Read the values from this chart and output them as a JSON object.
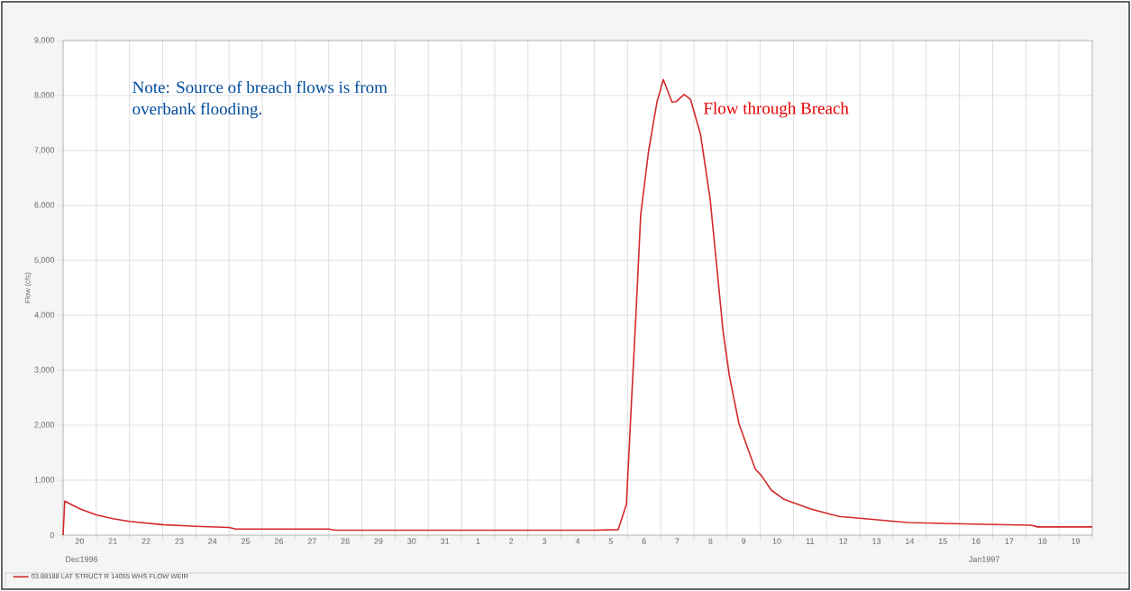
{
  "chart_data": {
    "type": "line",
    "ylabel": "Flow (cfs)",
    "xlim": [
      "1996-12-20T00:00",
      "1997-01-20T00:00"
    ],
    "ylim": [
      0,
      9000
    ],
    "yticks": [
      0,
      {
        "value": 1000,
        "label": "1,000"
      },
      {
        "value": 2000,
        "label": "2,000"
      },
      {
        "value": 3000,
        "label": "3,000"
      },
      {
        "value": 4000,
        "label": "4,000"
      },
      {
        "value": 5000,
        "label": "5,000"
      },
      {
        "value": 6000,
        "label": "6,000"
      },
      {
        "value": 7000,
        "label": "7,000"
      },
      {
        "value": 8000,
        "label": "8,000"
      },
      {
        "value": 9000,
        "label": "9,000"
      }
    ],
    "xticks": [
      {
        "value": "1996-12-20T00:00",
        "label": null
      },
      {
        "value": "1996-12-21T00:00",
        "label": null
      },
      {
        "value": "1996-12-22T00:00",
        "label": null
      },
      {
        "value": "1996-12-23T00:00",
        "label": null
      },
      {
        "value": "1996-12-24T00:00",
        "label": null
      },
      {
        "value": "1996-12-25T00:00",
        "label": null
      },
      {
        "value": "1996-12-26T00:00",
        "label": null
      },
      {
        "value": "1996-12-27T00:00",
        "label": null
      },
      {
        "value": "1996-12-28T00:00",
        "label": null
      },
      {
        "value": "1996-12-29T00:00",
        "label": null
      },
      {
        "value": "1996-12-30T00:00",
        "label": null
      },
      {
        "value": "1996-12-31T00:00",
        "label": null
      },
      {
        "value": "1997-01-01T00:00",
        "label": null
      },
      {
        "value": "1997-01-02T00:00",
        "label": null
      },
      {
        "value": "1997-01-03T00:00",
        "label": null
      },
      {
        "value": "1997-01-04T00:00",
        "label": null
      },
      {
        "value": "1997-01-05T00:00",
        "label": null
      },
      {
        "value": "1997-01-06T00:00",
        "label": null
      },
      {
        "value": "1997-01-07T00:00",
        "label": null
      },
      {
        "value": "1997-01-08T00:00",
        "label": null
      },
      {
        "value": "1997-01-09T00:00",
        "label": null
      },
      {
        "value": "1997-01-10T00:00",
        "label": null
      },
      {
        "value": "1997-01-11T00:00",
        "label": null
      },
      {
        "value": "1997-01-12T00:00",
        "label": null
      },
      {
        "value": "1997-01-13T00:00",
        "label": null
      },
      {
        "value": "1997-01-14T00:00",
        "label": null
      },
      {
        "value": "1997-01-15T00:00",
        "label": null
      },
      {
        "value": "1997-01-16T00:00",
        "label": null
      },
      {
        "value": "1997-01-17T00:00",
        "label": null
      },
      {
        "value": "1997-01-18T00:00",
        "label": null
      },
      {
        "value": "1997-01-19T00:00",
        "label": null
      },
      {
        "value": "1997-01-20T00:00",
        "label": null
      },
      {
        "value": "1996-12-20T12:00",
        "label": "20"
      },
      {
        "value": "1996-12-21T12:00",
        "label": "21"
      },
      {
        "value": "1996-12-22T12:00",
        "label": "22"
      },
      {
        "value": "1996-12-23T12:00",
        "label": "23"
      },
      {
        "value": "1996-12-24T12:00",
        "label": "24"
      },
      {
        "value": "1996-12-25T12:00",
        "label": "25"
      },
      {
        "value": "1996-12-26T12:00",
        "label": "26"
      },
      {
        "value": "1996-12-27T12:00",
        "label": "27"
      },
      {
        "value": "1996-12-28T12:00",
        "label": "28"
      },
      {
        "value": "1996-12-29T12:00",
        "label": "29"
      },
      {
        "value": "1996-12-30T12:00",
        "label": "30"
      },
      {
        "value": "1996-12-31T12:00",
        "label": "31"
      },
      {
        "value": "1997-01-01T12:00",
        "label": "1"
      },
      {
        "value": "1997-01-02T12:00",
        "label": "2"
      },
      {
        "value": "1997-01-03T12:00",
        "label": "3"
      },
      {
        "value": "1997-01-04T12:00",
        "label": "4"
      },
      {
        "value": "1997-01-05T12:00",
        "label": "5"
      },
      {
        "value": "1997-01-06T12:00",
        "label": "6"
      },
      {
        "value": "1997-01-07T12:00",
        "label": "7"
      },
      {
        "value": "1997-01-08T12:00",
        "label": "8"
      },
      {
        "value": "1997-01-09T12:00",
        "label": "9"
      },
      {
        "value": "1997-01-10T12:00",
        "label": "10"
      },
      {
        "value": "1997-01-11T12:00",
        "label": "11"
      },
      {
        "value": "1997-01-12T12:00",
        "label": "12"
      },
      {
        "value": "1997-01-13T12:00",
        "label": "13"
      },
      {
        "value": "1997-01-14T12:00",
        "label": "14"
      },
      {
        "value": "1997-01-15T12:00",
        "label": "15"
      },
      {
        "value": "1997-01-16T12:00",
        "label": "16"
      },
      {
        "value": "1997-01-17T12:00",
        "label": "17"
      },
      {
        "value": "1997-01-18T12:00",
        "label": "18"
      },
      {
        "value": "1997-01-19T12:00",
        "label": "19"
      }
    ],
    "grid": true,
    "legend": "bottom left",
    "marker": "none",
    "line_style": "solid",
    "series": [
      {
        "name": "03.88188 LAT STRUCT R 14055 WHS FLOW WEIR",
        "color": "#d42a2a",
        "x": [
          "1996-12-20T00:00",
          "1996-12-20T01:12",
          "1996-12-20T12:00",
          "1996-12-21T00:00",
          "1996-12-21T12:00",
          "1996-12-22T00:00",
          "1996-12-23T00:00",
          "1996-12-24T00:00",
          "1996-12-25T00:00",
          "1996-12-25T05:00",
          "1996-12-28T00:00",
          "1996-12-28T05:00",
          "1997-01-05T00:00",
          "1997-01-05T17:15",
          "1997-01-05T23:15",
          "1997-01-06T02:40",
          "1997-01-06T06:15",
          "1997-01-06T09:35",
          "1997-01-06T15:20",
          "1997-01-06T21:20",
          "1997-01-07T01:55",
          "1997-01-07T08:10",
          "1997-01-07T11:15",
          "1997-01-07T17:00",
          "1997-01-07T21:35",
          "1997-01-08T04:50",
          "1997-01-08T11:45",
          "1997-01-08T16:20",
          "1997-01-08T21:05",
          "1997-01-09T01:40",
          "1997-01-09T08:40",
          "1997-01-09T20:25",
          "1997-01-10T01:00",
          "1997-01-10T07:55",
          "1997-01-10T17:15",
          "1997-01-11T13:00",
          "1997-01-12T09:00",
          "1997-01-14T10:50",
          "1997-01-16T10:50",
          "1997-01-18T03:50",
          "1997-01-18T08:25",
          "1997-01-20T00:00"
        ],
        "values": [
          0,
          620,
          480,
          370,
          300,
          250,
          190,
          160,
          140,
          110,
          110,
          90,
          90,
          100,
          560,
          2310,
          4070,
          5830,
          7000,
          7880,
          8290,
          7880,
          7890,
          8020,
          7930,
          7290,
          6120,
          4950,
          3720,
          2900,
          2020,
          1200,
          1080,
          820,
          650,
          470,
          340,
          230,
          200,
          180,
          150,
          150
        ]
      }
    ],
    "annotations": [
      "Note: Source of breach flows is from overbank flooding.",
      "Flow through Breach",
      "Dec1996",
      "Jan1997"
    ]
  }
}
